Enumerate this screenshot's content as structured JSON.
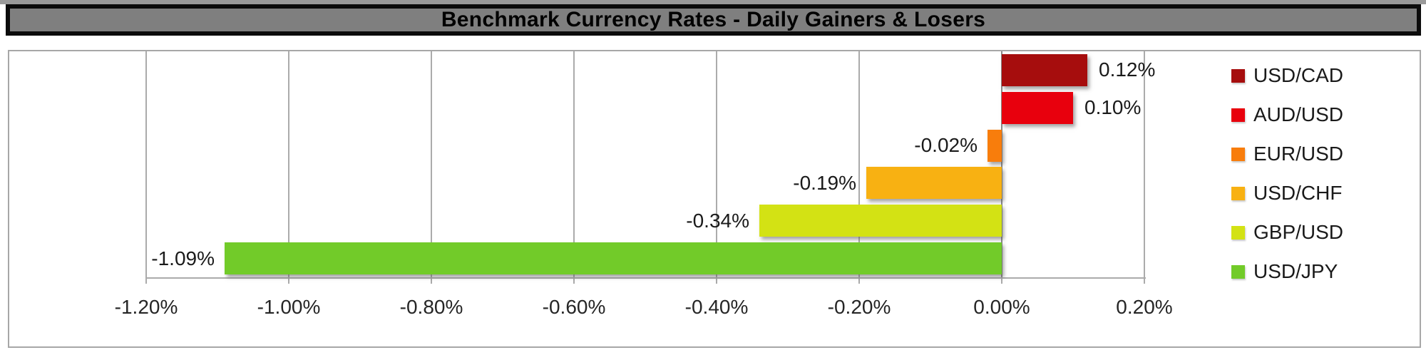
{
  "header": {
    "title": "Benchmark Currency Rates - Daily Gainers & Losers"
  },
  "chart_data": {
    "type": "bar",
    "orientation": "horizontal",
    "title": "Benchmark Currency Rates - Daily Gainers & Losers",
    "categories": [
      "USD/CAD",
      "AUD/USD",
      "EUR/USD",
      "USD/CHF",
      "GBP/USD",
      "USD/JPY"
    ],
    "series": [
      {
        "name": "USD/CAD",
        "value": 0.12,
        "label": "0.12%",
        "color": "#A60D0D"
      },
      {
        "name": "AUD/USD",
        "value": 0.1,
        "label": "0.10%",
        "color": "#E8000D"
      },
      {
        "name": "EUR/USD",
        "value": -0.02,
        "label": "-0.02%",
        "color": "#F87D0C"
      },
      {
        "name": "USD/CHF",
        "value": -0.19,
        "label": "-0.19%",
        "color": "#F8B112"
      },
      {
        "name": "GBP/USD",
        "value": -0.34,
        "label": "-0.34%",
        "color": "#D3E214"
      },
      {
        "name": "USD/JPY",
        "value": -1.09,
        "label": "-1.09%",
        "color": "#72CB29"
      }
    ],
    "xlim": [
      -1.2,
      0.2
    ],
    "xticks": [
      -1.2,
      -1.0,
      -0.8,
      -0.6,
      -0.4,
      -0.2,
      0.0,
      0.2
    ],
    "xtick_labels": [
      "-1.20%",
      "-1.00%",
      "-0.80%",
      "-0.60%",
      "-0.40%",
      "-0.20%",
      "0.00%",
      "0.20%"
    ],
    "units": "percent",
    "grid": true,
    "legend_position": "right",
    "value_label_position": "outside-end"
  },
  "colors": {
    "title_bar_bg": "#7F7F7F",
    "title_text": "#000000",
    "grid_line": "#ABABAB",
    "zero_line": "#8A8A8A",
    "frame_border": "#A7A7A7",
    "axis_text": "#262626",
    "value_text": "#1A1A1A",
    "legend_text": "#1A1A1A"
  }
}
